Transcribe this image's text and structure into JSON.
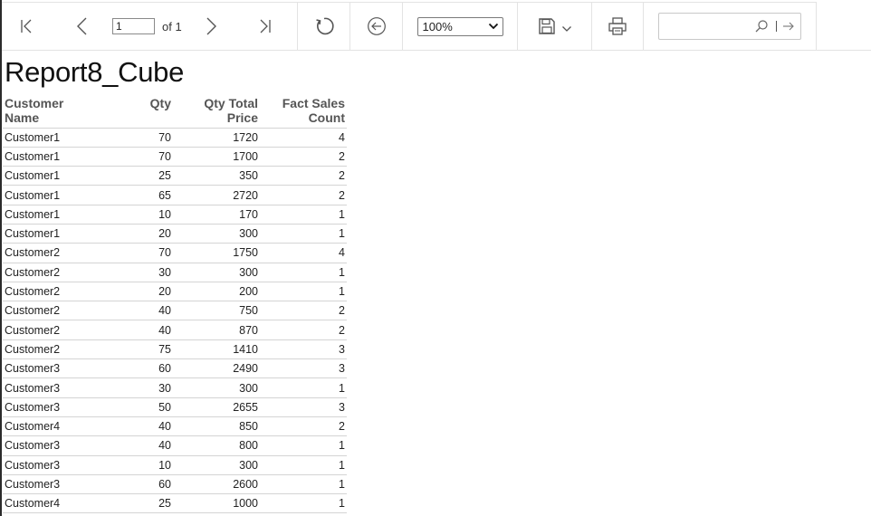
{
  "toolbar": {
    "current_page": "1",
    "page_total_label": "of 1",
    "zoom_value": "100%",
    "search_placeholder": ""
  },
  "icons": {
    "first_page": "first-page-icon",
    "prev_page": "chevron-left-icon",
    "next_page": "chevron-right-icon",
    "last_page": "last-page-icon",
    "refresh": "refresh-icon",
    "back": "back-circle-icon",
    "save": "save-icon",
    "print": "print-icon",
    "search": "search-icon",
    "find_next": "arrow-right-icon"
  },
  "colors": {
    "icon": "#555555",
    "border": "#e3e3e3",
    "header_text": "#555555"
  },
  "report": {
    "title": "Report8_Cube",
    "headers": {
      "name": [
        "Customer",
        "Name"
      ],
      "qty": "Qty",
      "total": [
        "Qty Total",
        "Price"
      ],
      "count": [
        "Fact Sales",
        "Count"
      ]
    },
    "rows": [
      {
        "name": "Customer1",
        "qty": "70",
        "total": "1720",
        "count": "4"
      },
      {
        "name": "Customer1",
        "qty": "70",
        "total": "1700",
        "count": "2"
      },
      {
        "name": "Customer1",
        "qty": "25",
        "total": "350",
        "count": "2"
      },
      {
        "name": "Customer1",
        "qty": "65",
        "total": "2720",
        "count": "2"
      },
      {
        "name": "Customer1",
        "qty": "10",
        "total": "170",
        "count": "1"
      },
      {
        "name": "Customer1",
        "qty": "20",
        "total": "300",
        "count": "1"
      },
      {
        "name": "Customer2",
        "qty": "70",
        "total": "1750",
        "count": "4"
      },
      {
        "name": "Customer2",
        "qty": "30",
        "total": "300",
        "count": "1"
      },
      {
        "name": "Customer2",
        "qty": "20",
        "total": "200",
        "count": "1"
      },
      {
        "name": "Customer2",
        "qty": "40",
        "total": "750",
        "count": "2"
      },
      {
        "name": "Customer2",
        "qty": "40",
        "total": "870",
        "count": "2"
      },
      {
        "name": "Customer2",
        "qty": "75",
        "total": "1410",
        "count": "3"
      },
      {
        "name": "Customer3",
        "qty": "60",
        "total": "2490",
        "count": "3"
      },
      {
        "name": "Customer3",
        "qty": "30",
        "total": "300",
        "count": "1"
      },
      {
        "name": "Customer3",
        "qty": "50",
        "total": "2655",
        "count": "3"
      },
      {
        "name": "Customer4",
        "qty": "40",
        "total": "850",
        "count": "2"
      },
      {
        "name": "Customer3",
        "qty": "40",
        "total": "800",
        "count": "1"
      },
      {
        "name": "Customer3",
        "qty": "10",
        "total": "300",
        "count": "1"
      },
      {
        "name": "Customer3",
        "qty": "60",
        "total": "2600",
        "count": "1"
      },
      {
        "name": "Customer4",
        "qty": "25",
        "total": "1000",
        "count": "1"
      }
    ]
  }
}
